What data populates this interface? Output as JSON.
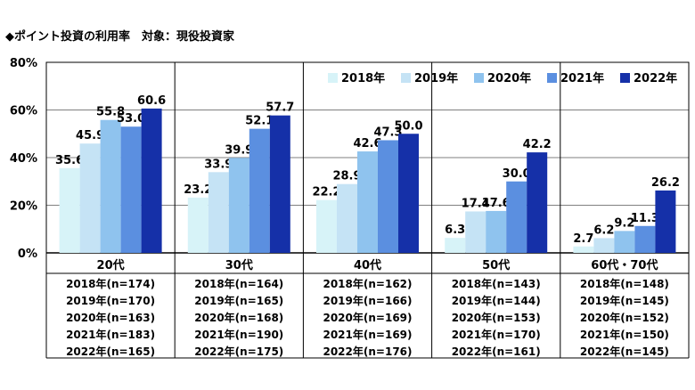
{
  "title": "◆ポイント投資の利用率　対象：現役投資家",
  "colors": {
    "2018年": "#d7f3f8",
    "2019年": "#c5e3f5",
    "2020年": "#8fc3ee",
    "2021年": "#5b8fe0",
    "2022年": "#1530a8",
    "axis": "#000000",
    "grid": "#000000"
  },
  "chart_data": {
    "type": "bar",
    "categories": [
      "20代",
      "30代",
      "40代",
      "50代",
      "60代・70代"
    ],
    "series": [
      {
        "name": "2018年",
        "values": [
          35.6,
          23.2,
          22.2,
          6.3,
          2.7
        ]
      },
      {
        "name": "2019年",
        "values": [
          45.9,
          33.9,
          28.9,
          17.4,
          6.2
        ]
      },
      {
        "name": "2020年",
        "values": [
          55.8,
          39.9,
          42.6,
          17.6,
          9.2
        ]
      },
      {
        "name": "2021年",
        "values": [
          53.0,
          52.1,
          47.3,
          30.0,
          11.3
        ]
      },
      {
        "name": "2022年",
        "values": [
          60.6,
          57.7,
          50.0,
          42.2,
          26.2
        ]
      }
    ],
    "yticks": [
      "0%",
      "20%",
      "40%",
      "60%",
      "80%"
    ],
    "ylim": [
      0,
      80
    ],
    "legend": "top-right",
    "sample_sizes": [
      [
        "2018年(n=174)",
        "2019年(n=170)",
        "2020年(n=163)",
        "2021年(n=183)",
        "2022年(n=165)"
      ],
      [
        "2018年(n=164)",
        "2019年(n=165)",
        "2020年(n=168)",
        "2021年(n=190)",
        "2022年(n=175)"
      ],
      [
        "2018年(n=162)",
        "2019年(n=166)",
        "2020年(n=169)",
        "2021年(n=169)",
        "2022年(n=176)"
      ],
      [
        "2018年(n=143)",
        "2019年(n=144)",
        "2020年(n=153)",
        "2021年(n=170)",
        "2022年(n=161)"
      ],
      [
        "2018年(n=148)",
        "2019年(n=145)",
        "2020年(n=152)",
        "2021年(n=150)",
        "2022年(n=145)"
      ]
    ]
  }
}
